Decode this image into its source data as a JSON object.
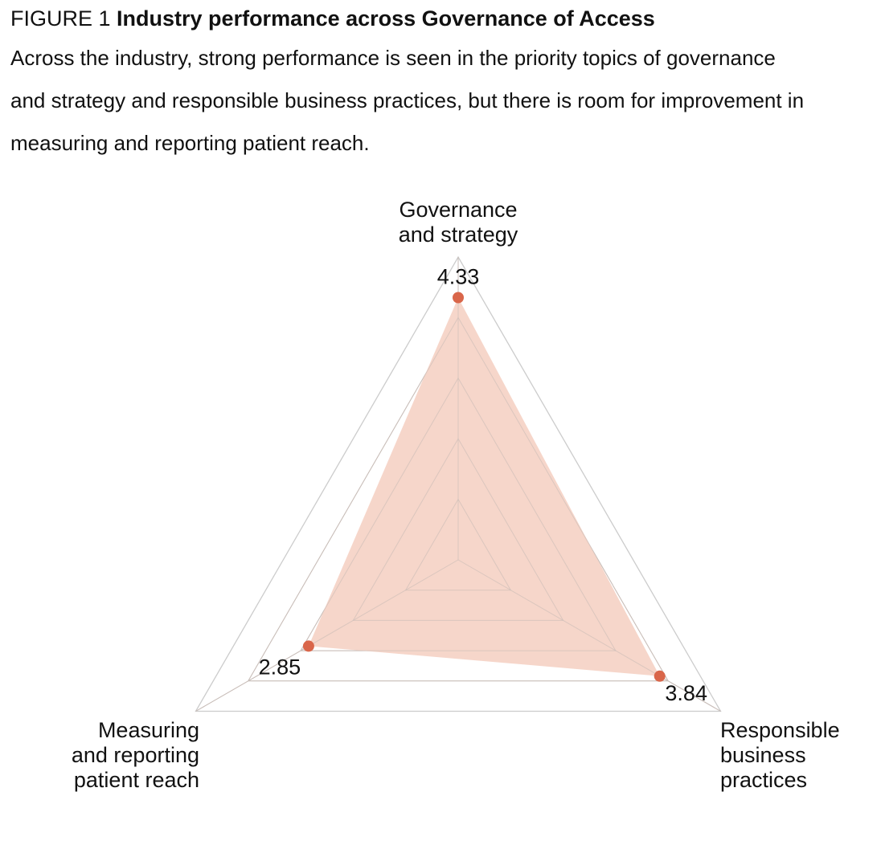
{
  "figure": {
    "label": "FIGURE 1",
    "title": "Industry performance across Governance of Access",
    "subtitle": "Across the industry, strong performance is seen in the priority topics of governance and strategy and responsible business practices, but there is room for improvement in measuring and reporting patient reach."
  },
  "chart_data": {
    "type": "radar",
    "title": "Industry performance across Governance of Access",
    "axes": [
      {
        "name": "Governance and strategy",
        "lines": [
          "Governance",
          "and strategy"
        ],
        "value": 4.33,
        "value_label": "4.33"
      },
      {
        "name": "Responsible business practices",
        "lines": [
          "Responsible",
          "business",
          "practices"
        ],
        "value": 3.84,
        "value_label": "3.84"
      },
      {
        "name": "Measuring and reporting patient reach",
        "lines": [
          "Measuring",
          "and reporting",
          "patient reach"
        ],
        "value": 2.85,
        "value_label": "2.85"
      }
    ],
    "range": [
      0,
      5
    ],
    "grid_levels": [
      1,
      2,
      3,
      4,
      5
    ],
    "colors": {
      "fill": "#f5d3c5",
      "marker": "#d9664a",
      "grid_outer": "#cccccc",
      "grid_inner": "#c8bdb8"
    }
  }
}
